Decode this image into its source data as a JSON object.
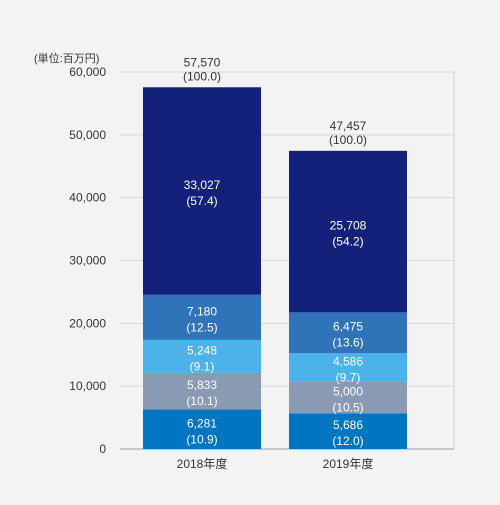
{
  "chart_data": {
    "type": "bar",
    "stacked": true,
    "unit_label": "(単位:百万円)",
    "categories": [
      "2018年度",
      "2019年度"
    ],
    "ylim": [
      0,
      60000
    ],
    "yticks": [
      0,
      10000,
      20000,
      30000,
      40000,
      50000,
      60000
    ],
    "ytick_labels": [
      "0",
      "10,000",
      "20,000",
      "30,000",
      "40,000",
      "50,000",
      "60,000"
    ],
    "grid": true,
    "totals": [
      {
        "value": 57570,
        "label": "57,570",
        "share": "(100.0)"
      },
      {
        "value": 47457,
        "label": "47,457",
        "share": "(100.0)"
      }
    ],
    "series": [
      {
        "color": "#0075c2",
        "values": [
          6281,
          5686
        ],
        "labels": [
          "6,281",
          "5,686"
        ],
        "shares": [
          "(10.9)",
          "(12.0)"
        ]
      },
      {
        "color": "#8a9ab2",
        "values": [
          5833,
          5000
        ],
        "labels": [
          "5,833",
          "5,000"
        ],
        "shares": [
          "(10.1)",
          "(10.5)"
        ]
      },
      {
        "color": "#4cb2ea",
        "values": [
          5248,
          4586
        ],
        "labels": [
          "5,248",
          "4,586"
        ],
        "shares": [
          "(9.1)",
          "(9.7)"
        ]
      },
      {
        "color": "#2f74b8",
        "values": [
          7180,
          6475
        ],
        "labels": [
          "7,180",
          "6,475"
        ],
        "shares": [
          "(12.5)",
          "(13.6)"
        ]
      },
      {
        "color": "#13217a",
        "values": [
          33027,
          25708
        ],
        "labels": [
          "33,027",
          "25,708"
        ],
        "shares": [
          "(57.4)",
          "(54.2)"
        ]
      }
    ]
  }
}
